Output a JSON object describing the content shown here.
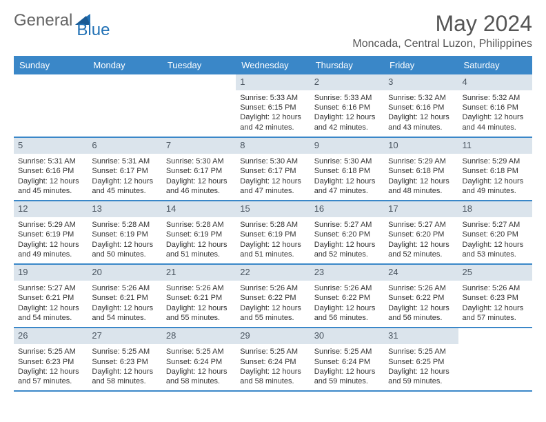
{
  "logo": {
    "gray": "General",
    "blue": "Blue"
  },
  "title": "May 2024",
  "location": "Moncada, Central Luzon, Philippines",
  "colors": {
    "header_bg": "#3a87c8",
    "header_text": "#ffffff",
    "daynum_bg": "#dbe4ec",
    "daynum_text": "#4a5560",
    "border": "#3a87c8",
    "body_bg": "#ffffff"
  },
  "day_labels": [
    "Sunday",
    "Monday",
    "Tuesday",
    "Wednesday",
    "Thursday",
    "Friday",
    "Saturday"
  ],
  "weeks": [
    [
      {
        "n": "",
        "sr": "",
        "ss": "",
        "dl": "",
        "empty": true
      },
      {
        "n": "",
        "sr": "",
        "ss": "",
        "dl": "",
        "empty": true
      },
      {
        "n": "",
        "sr": "",
        "ss": "",
        "dl": "",
        "empty": true
      },
      {
        "n": "1",
        "sr": "Sunrise: 5:33 AM",
        "ss": "Sunset: 6:15 PM",
        "dl": "Daylight: 12 hours and 42 minutes."
      },
      {
        "n": "2",
        "sr": "Sunrise: 5:33 AM",
        "ss": "Sunset: 6:16 PM",
        "dl": "Daylight: 12 hours and 42 minutes."
      },
      {
        "n": "3",
        "sr": "Sunrise: 5:32 AM",
        "ss": "Sunset: 6:16 PM",
        "dl": "Daylight: 12 hours and 43 minutes."
      },
      {
        "n": "4",
        "sr": "Sunrise: 5:32 AM",
        "ss": "Sunset: 6:16 PM",
        "dl": "Daylight: 12 hours and 44 minutes."
      }
    ],
    [
      {
        "n": "5",
        "sr": "Sunrise: 5:31 AM",
        "ss": "Sunset: 6:16 PM",
        "dl": "Daylight: 12 hours and 45 minutes."
      },
      {
        "n": "6",
        "sr": "Sunrise: 5:31 AM",
        "ss": "Sunset: 6:17 PM",
        "dl": "Daylight: 12 hours and 45 minutes."
      },
      {
        "n": "7",
        "sr": "Sunrise: 5:30 AM",
        "ss": "Sunset: 6:17 PM",
        "dl": "Daylight: 12 hours and 46 minutes."
      },
      {
        "n": "8",
        "sr": "Sunrise: 5:30 AM",
        "ss": "Sunset: 6:17 PM",
        "dl": "Daylight: 12 hours and 47 minutes."
      },
      {
        "n": "9",
        "sr": "Sunrise: 5:30 AM",
        "ss": "Sunset: 6:18 PM",
        "dl": "Daylight: 12 hours and 47 minutes."
      },
      {
        "n": "10",
        "sr": "Sunrise: 5:29 AM",
        "ss": "Sunset: 6:18 PM",
        "dl": "Daylight: 12 hours and 48 minutes."
      },
      {
        "n": "11",
        "sr": "Sunrise: 5:29 AM",
        "ss": "Sunset: 6:18 PM",
        "dl": "Daylight: 12 hours and 49 minutes."
      }
    ],
    [
      {
        "n": "12",
        "sr": "Sunrise: 5:29 AM",
        "ss": "Sunset: 6:19 PM",
        "dl": "Daylight: 12 hours and 49 minutes."
      },
      {
        "n": "13",
        "sr": "Sunrise: 5:28 AM",
        "ss": "Sunset: 6:19 PM",
        "dl": "Daylight: 12 hours and 50 minutes."
      },
      {
        "n": "14",
        "sr": "Sunrise: 5:28 AM",
        "ss": "Sunset: 6:19 PM",
        "dl": "Daylight: 12 hours and 51 minutes."
      },
      {
        "n": "15",
        "sr": "Sunrise: 5:28 AM",
        "ss": "Sunset: 6:19 PM",
        "dl": "Daylight: 12 hours and 51 minutes."
      },
      {
        "n": "16",
        "sr": "Sunrise: 5:27 AM",
        "ss": "Sunset: 6:20 PM",
        "dl": "Daylight: 12 hours and 52 minutes."
      },
      {
        "n": "17",
        "sr": "Sunrise: 5:27 AM",
        "ss": "Sunset: 6:20 PM",
        "dl": "Daylight: 12 hours and 52 minutes."
      },
      {
        "n": "18",
        "sr": "Sunrise: 5:27 AM",
        "ss": "Sunset: 6:20 PM",
        "dl": "Daylight: 12 hours and 53 minutes."
      }
    ],
    [
      {
        "n": "19",
        "sr": "Sunrise: 5:27 AM",
        "ss": "Sunset: 6:21 PM",
        "dl": "Daylight: 12 hours and 54 minutes."
      },
      {
        "n": "20",
        "sr": "Sunrise: 5:26 AM",
        "ss": "Sunset: 6:21 PM",
        "dl": "Daylight: 12 hours and 54 minutes."
      },
      {
        "n": "21",
        "sr": "Sunrise: 5:26 AM",
        "ss": "Sunset: 6:21 PM",
        "dl": "Daylight: 12 hours and 55 minutes."
      },
      {
        "n": "22",
        "sr": "Sunrise: 5:26 AM",
        "ss": "Sunset: 6:22 PM",
        "dl": "Daylight: 12 hours and 55 minutes."
      },
      {
        "n": "23",
        "sr": "Sunrise: 5:26 AM",
        "ss": "Sunset: 6:22 PM",
        "dl": "Daylight: 12 hours and 56 minutes."
      },
      {
        "n": "24",
        "sr": "Sunrise: 5:26 AM",
        "ss": "Sunset: 6:22 PM",
        "dl": "Daylight: 12 hours and 56 minutes."
      },
      {
        "n": "25",
        "sr": "Sunrise: 5:26 AM",
        "ss": "Sunset: 6:23 PM",
        "dl": "Daylight: 12 hours and 57 minutes."
      }
    ],
    [
      {
        "n": "26",
        "sr": "Sunrise: 5:25 AM",
        "ss": "Sunset: 6:23 PM",
        "dl": "Daylight: 12 hours and 57 minutes."
      },
      {
        "n": "27",
        "sr": "Sunrise: 5:25 AM",
        "ss": "Sunset: 6:23 PM",
        "dl": "Daylight: 12 hours and 58 minutes."
      },
      {
        "n": "28",
        "sr": "Sunrise: 5:25 AM",
        "ss": "Sunset: 6:24 PM",
        "dl": "Daylight: 12 hours and 58 minutes."
      },
      {
        "n": "29",
        "sr": "Sunrise: 5:25 AM",
        "ss": "Sunset: 6:24 PM",
        "dl": "Daylight: 12 hours and 58 minutes."
      },
      {
        "n": "30",
        "sr": "Sunrise: 5:25 AM",
        "ss": "Sunset: 6:24 PM",
        "dl": "Daylight: 12 hours and 59 minutes."
      },
      {
        "n": "31",
        "sr": "Sunrise: 5:25 AM",
        "ss": "Sunset: 6:25 PM",
        "dl": "Daylight: 12 hours and 59 minutes."
      },
      {
        "n": "",
        "sr": "",
        "ss": "",
        "dl": "",
        "empty": true
      }
    ]
  ]
}
